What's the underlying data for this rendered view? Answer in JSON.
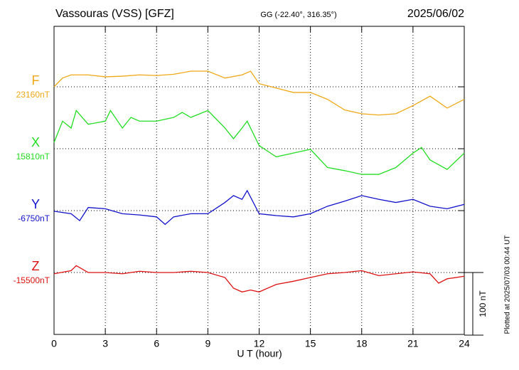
{
  "chart_data": {
    "type": "line",
    "title": "Vassouras (VSS)  [GFZ]",
    "subtitle": "GG (-22.40°, 316.35°)",
    "date": "2025/06/02",
    "xlabel": "U T (hour)",
    "footnote": "Plotted at 2025/07/03 00:44 UT",
    "xlim": [
      0,
      24
    ],
    "xticks": [
      0,
      3,
      6,
      9,
      12,
      15,
      18,
      21,
      24
    ],
    "grid": true,
    "scale_bar": {
      "value": 100,
      "label": "100 nT"
    },
    "series": [
      {
        "name": "F",
        "color": "#f0a818",
        "baseline": {
          "value": 23160,
          "label": "23160nT"
        },
        "x": [
          0,
          0.5,
          1,
          2,
          3,
          4,
          5,
          6,
          7,
          8,
          9,
          10,
          11,
          11.5,
          12,
          13,
          14,
          15,
          16,
          17,
          18,
          19,
          20,
          21,
          22,
          23,
          24
        ],
        "values": [
          23160,
          23174,
          23179,
          23179,
          23176,
          23177,
          23179,
          23178,
          23180,
          23185,
          23185,
          23174,
          23179,
          23185,
          23165,
          23158,
          23151,
          23151,
          23140,
          23123,
          23117,
          23115,
          23117,
          23130,
          23145,
          23126,
          23140
        ]
      },
      {
        "name": "X",
        "color": "#22dd22",
        "baseline": {
          "value": 15810,
          "label": "15810nT"
        },
        "x": [
          0,
          0.5,
          1,
          1.3,
          2,
          3,
          3.3,
          4,
          4.5,
          5,
          6,
          7,
          7.5,
          8,
          9,
          10,
          10.5,
          11,
          11.3,
          12,
          13,
          14,
          15,
          16,
          17,
          18,
          19,
          20,
          21,
          21.5,
          22,
          23,
          24
        ],
        "values": [
          15820,
          15854,
          15843,
          15871,
          15849,
          15854,
          15871,
          15843,
          15860,
          15854,
          15854,
          15860,
          15868,
          15860,
          15871,
          15843,
          15826,
          15843,
          15854,
          15815,
          15797,
          15803,
          15809,
          15780,
          15775,
          15769,
          15769,
          15780,
          15803,
          15812,
          15792,
          15777,
          15803
        ]
      },
      {
        "name": "Y",
        "color": "#1111cc",
        "baseline": {
          "value": -6750,
          "label": "-6750nT"
        },
        "x": [
          0,
          1,
          1.5,
          2,
          3,
          4,
          5,
          6,
          6.5,
          7,
          8,
          9,
          10,
          10.5,
          11,
          11.3,
          12,
          13,
          14,
          15,
          16,
          17,
          18,
          19,
          20,
          21,
          22,
          23,
          24
        ],
        "values": [
          -6751,
          -6755,
          -6766,
          -6745,
          -6747,
          -6755,
          -6757,
          -6760,
          -6772,
          -6760,
          -6755,
          -6755,
          -6737,
          -6726,
          -6732,
          -6718,
          -6755,
          -6758,
          -6760,
          -6755,
          -6743,
          -6735,
          -6726,
          -6732,
          -6737,
          -6732,
          -6743,
          -6747,
          -6740
        ]
      },
      {
        "name": "Z",
        "color": "#dd1111",
        "baseline": {
          "value": -15500,
          "label": "-15500nT"
        },
        "x": [
          0,
          1,
          1.3,
          2,
          3,
          4,
          5,
          6,
          7,
          8,
          9,
          10,
          10.5,
          11,
          11.5,
          12,
          13,
          14,
          15,
          16,
          17,
          18,
          19,
          20,
          21,
          22,
          22.5,
          23,
          24
        ],
        "values": [
          -15502,
          -15497,
          -15489,
          -15500,
          -15500,
          -15502,
          -15498,
          -15500,
          -15500,
          -15498,
          -15500,
          -15508,
          -15525,
          -15531,
          -15528,
          -15531,
          -15519,
          -15514,
          -15508,
          -15502,
          -15500,
          -15497,
          -15505,
          -15502,
          -15499,
          -15502,
          -15517,
          -15510,
          -15506
        ]
      }
    ]
  }
}
